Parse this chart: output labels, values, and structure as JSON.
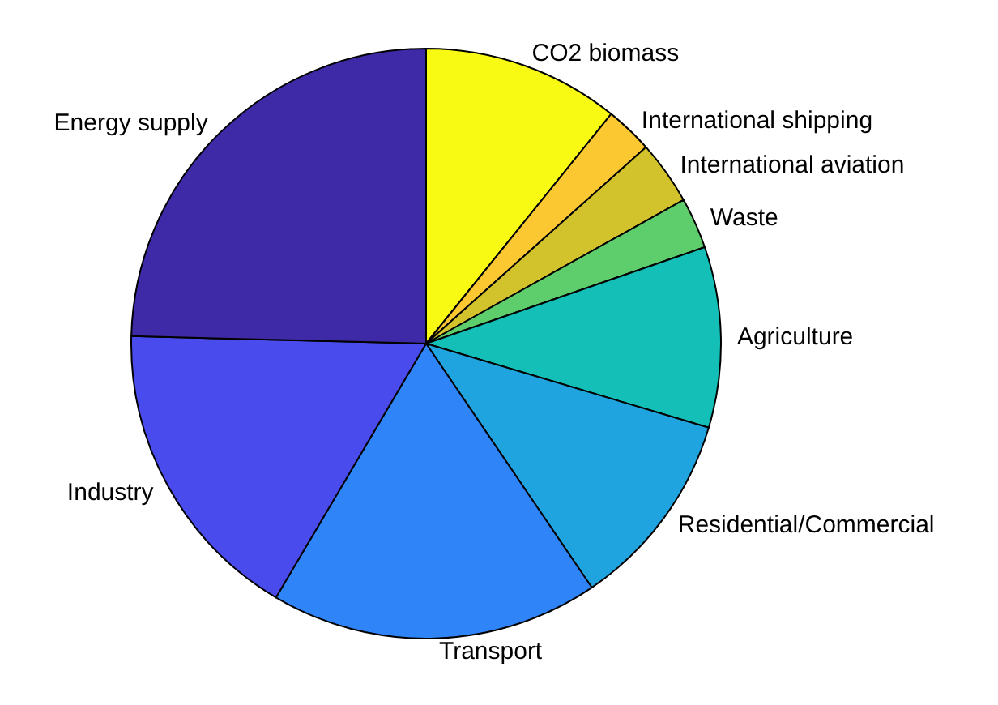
{
  "chart_data": {
    "type": "pie",
    "categories": [
      "CO2 biomass",
      "International shipping",
      "International aviation",
      "Waste",
      "Agriculture",
      "Residential/Commercial",
      "Transport",
      "Industry",
      "Energy supply"
    ],
    "values": [
      10.8,
      2.6,
      3.5,
      2.8,
      9.9,
      10.9,
      18.0,
      16.9,
      24.6
    ],
    "colors": [
      "#f8fa14",
      "#fbc832",
      "#d2c22b",
      "#5ecd6c",
      "#13bfb6",
      "#20a4df",
      "#2f84f8",
      "#4a4bec",
      "#3e2aa6"
    ]
  }
}
